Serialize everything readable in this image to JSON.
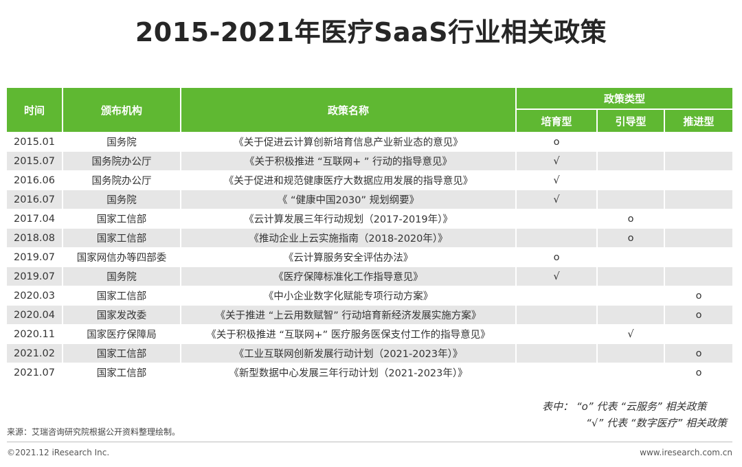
{
  "title": "2015-2021年医疗SaaS行业相关政策",
  "table": {
    "headers": {
      "time": "时间",
      "agency": "颁布机构",
      "name": "政策名称",
      "type_group": "政策类型",
      "type1": "培育型",
      "type2": "引导型",
      "type3": "推进型"
    },
    "rows": [
      {
        "date": "2015.01",
        "agency": "国务院",
        "name": "《关于促进云计算创新培育信息产业新业态的意见》",
        "t1": "o",
        "t2": "",
        "t3": ""
      },
      {
        "date": "2015.07",
        "agency": "国务院办公厅",
        "name": "《关于积极推进 “互联网+ ” 行动的指导意见》",
        "t1": "√",
        "t2": "",
        "t3": ""
      },
      {
        "date": "2016.06",
        "agency": "国务院办公厅",
        "name": "《关于促进和规范健康医疗大数据应用发展的指导意见》",
        "t1": "√",
        "t2": "",
        "t3": ""
      },
      {
        "date": "2016.07",
        "agency": "国务院",
        "name": "《 “健康中国2030” 规划纲要》",
        "t1": "√",
        "t2": "",
        "t3": ""
      },
      {
        "date": "2017.04",
        "agency": "国家工信部",
        "name": "《云计算发展三年行动规划（2017-2019年）》",
        "t1": "",
        "t2": "o",
        "t3": ""
      },
      {
        "date": "2018.08",
        "agency": "国家工信部",
        "name": "《推动企业上云实施指南（2018-2020年）》",
        "t1": "",
        "t2": "o",
        "t3": ""
      },
      {
        "date": "2019.07",
        "agency": "国家网信办等四部委",
        "name": "《云计算服务安全评估办法》",
        "t1": "o",
        "t2": "",
        "t3": ""
      },
      {
        "date": "2019.07",
        "agency": "国务院",
        "name": "《医疗保障标准化工作指导意见》",
        "t1": "√",
        "t2": "",
        "t3": ""
      },
      {
        "date": "2020.03",
        "agency": "国家工信部",
        "name": "《中小企业数字化赋能专项行动方案》",
        "t1": "",
        "t2": "",
        "t3": "o"
      },
      {
        "date": "2020.04",
        "agency": "国家发改委",
        "name": "《关于推进 “上云用数赋智” 行动培育新经济发展实施方案》",
        "t1": "",
        "t2": "",
        "t3": "o"
      },
      {
        "date": "2020.11",
        "agency": "国家医疗保障局",
        "name": "《关于积极推进 “互联网+” 医疗服务医保支付工作的指导意见》",
        "t1": "",
        "t2": "√",
        "t3": ""
      },
      {
        "date": "2021.02",
        "agency": "国家工信部",
        "name": "《工业互联网创新发展行动计划（2021-2023年）》",
        "t1": "",
        "t2": "",
        "t3": "o"
      },
      {
        "date": "2021.07",
        "agency": "国家工信部",
        "name": "《新型数据中心发展三年行动计划（2021-2023年）》",
        "t1": "",
        "t2": "",
        "t3": "o"
      }
    ]
  },
  "legend": {
    "line1": "表中：  “o” 代表 “云服务” 相关政策",
    "line2": "“√” 代表 “数字医疗” 相关政策"
  },
  "source": "来源：艾瑞咨询研究院根据公开资料整理绘制。",
  "copyright": "©2021.12 iResearch Inc.",
  "website": "www.iresearch.com.cn",
  "colors": {
    "header_green": "#5fb832",
    "shade_gray": "#e6e6e6"
  }
}
